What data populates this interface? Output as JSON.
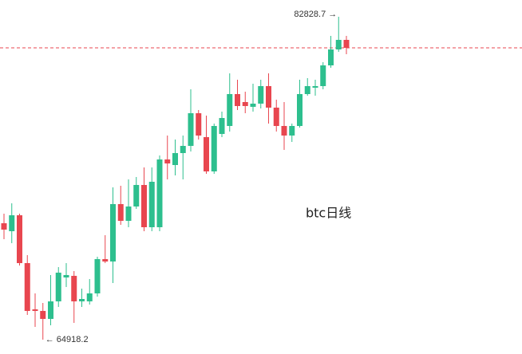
{
  "chart_data": {
    "type": "candlestick",
    "watermark": "btc日线",
    "up_color": "#2dbf8e",
    "down_color": "#e8464f",
    "open": [
      71375,
      70933,
      71818,
      69164,
      66600,
      66511,
      66069,
      67042,
      68368,
      68457,
      67042,
      67042,
      67484,
      69385,
      69253,
      72437,
      71508,
      72304,
      73498,
      71154,
      71154,
      74913,
      74603,
      75267,
      75665,
      77478,
      76151,
      74250,
      76328,
      76770,
      78539,
      78097,
      77832,
      78008,
      78981,
      77787,
      76770,
      76240,
      76770,
      78539,
      78893,
      78981,
      80131,
      81015,
      81546
    ],
    "high": [
      71906,
      72481,
      71906,
      69607,
      67484,
      66953,
      68501,
      68943,
      69164,
      68722,
      67749,
      68280,
      69518,
      70712,
      73365,
      73454,
      73807,
      73940,
      74471,
      74471,
      75134,
      76240,
      76018,
      76240,
      78804,
      77655,
      77345,
      76903,
      77566,
      79689,
      79335,
      78672,
      79114,
      79335,
      79689,
      78229,
      78097,
      76903,
      79335,
      79423,
      79335,
      80308,
      81767,
      82828.7,
      81767
    ],
    "low": [
      70491,
      70270,
      69032,
      66290,
      65627,
      64918.2,
      65715,
      66732,
      67838,
      65848,
      66732,
      66865,
      67307,
      69164,
      68059,
      71287,
      71154,
      72171,
      70933,
      70933,
      70933,
      73807,
      74029,
      73807,
      75355,
      76018,
      74117,
      74117,
      76151,
      76461,
      77655,
      77478,
      77566,
      77743,
      76903,
      76461,
      75444,
      75886,
      76682,
      78451,
      78451,
      78804,
      79998,
      80883,
      80750
    ],
    "close": [
      71022,
      71818,
      69164,
      66511,
      66511,
      66069,
      67042,
      68634,
      68501,
      67042,
      67174,
      67484,
      69385,
      69253,
      72437,
      71508,
      72304,
      73498,
      71154,
      73675,
      74913,
      74692,
      75267,
      75665,
      77478,
      76240,
      74250,
      76770,
      77212,
      78539,
      77876,
      77876,
      78008,
      78981,
      77787,
      76770,
      76240,
      76770,
      78539,
      78981,
      78981,
      80131,
      81015,
      81546,
      81104
    ],
    "price_line": {
      "value": 81104,
      "color": "#e8464f"
    },
    "max_label": {
      "value": 82828.7,
      "label": "82828.7 →"
    },
    "min_label": {
      "value": 64918.2,
      "label": "← 64918.2"
    }
  }
}
